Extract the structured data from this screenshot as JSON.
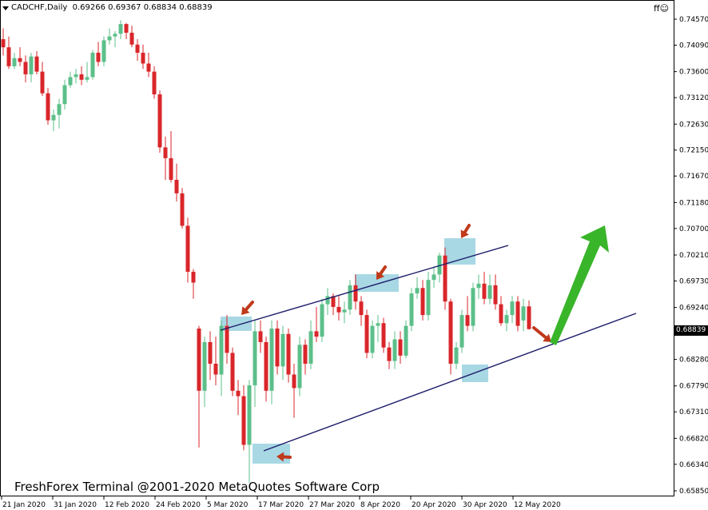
{
  "header": {
    "symbol": "CADCHF,Daily",
    "ohlc": "0.69266 0.69367 0.68834 0.68839",
    "ff_label": "ff☺"
  },
  "watermark": "FreshForex Terminal @2001-2020 MetaQuotes Software Corp",
  "current_price": "0.68839",
  "colors": {
    "bull": "#5cbf8a",
    "bear": "#d9262a",
    "channel": "#1c1c6a",
    "highlight": "#a8d8e4",
    "arrow_red": "#c0391b",
    "arrow_green": "#39b52a"
  },
  "chart_data": {
    "type": "candlestick",
    "title": "",
    "xlabel": "",
    "ylabel": "",
    "ylim": [
      0.6558,
      0.7478
    ],
    "y_ticks": [
      "0.74570",
      "0.74090",
      "0.73600",
      "0.73120",
      "0.72630",
      "0.72150",
      "0.71670",
      "0.71180",
      "0.70700",
      "0.70210",
      "0.69730",
      "0.69240",
      "0.68760",
      "0.68280",
      "0.67790",
      "0.67310",
      "0.66820",
      "0.66340",
      "0.65850"
    ],
    "x_labels": [
      "21 Jan 2020",
      "31 Jan 2020",
      "12 Feb 2020",
      "24 Feb 2020",
      "5 Mar 2020",
      "17 Mar 2020",
      "27 Mar 2020",
      "8 Apr 2020",
      "20 Apr 2020",
      "30 Apr 2020",
      "12 May 2020"
    ],
    "candles": [
      [
        0.742,
        0.744,
        0.739,
        0.7405
      ],
      [
        0.7405,
        0.7425,
        0.7365,
        0.737
      ],
      [
        0.737,
        0.7395,
        0.7365,
        0.7385
      ],
      [
        0.7385,
        0.7405,
        0.737,
        0.7378
      ],
      [
        0.7378,
        0.739,
        0.734,
        0.7355
      ],
      [
        0.7355,
        0.7395,
        0.734,
        0.7388
      ],
      [
        0.7388,
        0.7398,
        0.7355,
        0.736
      ],
      [
        0.736,
        0.7378,
        0.7315,
        0.732
      ],
      [
        0.732,
        0.733,
        0.7262,
        0.727
      ],
      [
        0.727,
        0.729,
        0.725,
        0.728
      ],
      [
        0.728,
        0.731,
        0.7255,
        0.73
      ],
      [
        0.73,
        0.7345,
        0.729,
        0.7335
      ],
      [
        0.7335,
        0.736,
        0.733,
        0.735
      ],
      [
        0.735,
        0.7365,
        0.7338,
        0.7355
      ],
      [
        0.7355,
        0.737,
        0.7335,
        0.7345
      ],
      [
        0.7345,
        0.7378,
        0.734,
        0.735
      ],
      [
        0.735,
        0.74,
        0.7345,
        0.7395
      ],
      [
        0.7395,
        0.7415,
        0.737,
        0.7378
      ],
      [
        0.7378,
        0.7425,
        0.737,
        0.7418
      ],
      [
        0.7418,
        0.744,
        0.741,
        0.7425
      ],
      [
        0.7425,
        0.7435,
        0.7405,
        0.743
      ],
      [
        0.743,
        0.7455,
        0.742,
        0.7448
      ],
      [
        0.7448,
        0.745,
        0.742,
        0.7432
      ],
      [
        0.7432,
        0.7445,
        0.7405,
        0.741
      ],
      [
        0.741,
        0.742,
        0.738,
        0.7395
      ],
      [
        0.7395,
        0.741,
        0.7365,
        0.7375
      ],
      [
        0.7375,
        0.7395,
        0.735,
        0.736
      ],
      [
        0.736,
        0.737,
        0.731,
        0.7318
      ],
      [
        0.7318,
        0.7325,
        0.721,
        0.722
      ],
      [
        0.722,
        0.724,
        0.716,
        0.72
      ],
      [
        0.72,
        0.725,
        0.7155,
        0.716
      ],
      [
        0.716,
        0.719,
        0.712,
        0.7135
      ],
      [
        0.7135,
        0.7145,
        0.707,
        0.7075
      ],
      [
        0.7075,
        0.709,
        0.697,
        0.699
      ],
      [
        0.699,
        0.6995,
        0.694,
        0.697
      ],
      [
        0.6885,
        0.689,
        0.6665,
        0.677
      ],
      [
        0.677,
        0.687,
        0.674,
        0.686
      ],
      [
        0.686,
        0.688,
        0.679,
        0.682
      ],
      [
        0.682,
        0.687,
        0.678,
        0.68
      ],
      [
        0.68,
        0.69,
        0.676,
        0.689
      ],
      [
        0.689,
        0.691,
        0.682,
        0.684
      ],
      [
        0.684,
        0.685,
        0.676,
        0.677
      ],
      [
        0.677,
        0.679,
        0.6725,
        0.676
      ],
      [
        0.676,
        0.678,
        0.666,
        0.667
      ],
      [
        0.667,
        0.679,
        0.66,
        0.678
      ],
      [
        0.678,
        0.69,
        0.674,
        0.688
      ],
      [
        0.688,
        0.69,
        0.684,
        0.686
      ],
      [
        0.686,
        0.687,
        0.675,
        0.677
      ],
      [
        0.677,
        0.69,
        0.6745,
        0.6885
      ],
      [
        0.6885,
        0.69,
        0.68,
        0.6815
      ],
      [
        0.6815,
        0.689,
        0.679,
        0.6875
      ],
      [
        0.6875,
        0.6885,
        0.6785,
        0.68
      ],
      [
        0.68,
        0.682,
        0.672,
        0.6775
      ],
      [
        0.6775,
        0.687,
        0.676,
        0.6855
      ],
      [
        0.6855,
        0.6865,
        0.68,
        0.682
      ],
      [
        0.682,
        0.69,
        0.681,
        0.688
      ],
      [
        0.688,
        0.6925,
        0.686,
        0.687
      ],
      [
        0.687,
        0.694,
        0.686,
        0.693
      ],
      [
        0.693,
        0.696,
        0.691,
        0.6945
      ],
      [
        0.6945,
        0.695,
        0.691,
        0.6925
      ],
      [
        0.6925,
        0.6945,
        0.69,
        0.6915
      ],
      [
        0.6915,
        0.6935,
        0.6895,
        0.692
      ],
      [
        0.692,
        0.6975,
        0.691,
        0.6965
      ],
      [
        0.6965,
        0.6985,
        0.692,
        0.6935
      ],
      [
        0.6935,
        0.6945,
        0.689,
        0.691
      ],
      [
        0.691,
        0.692,
        0.683,
        0.684
      ],
      [
        0.684,
        0.69,
        0.683,
        0.689
      ],
      [
        0.689,
        0.691,
        0.686,
        0.6895
      ],
      [
        0.6895,
        0.6905,
        0.684,
        0.685
      ],
      [
        0.685,
        0.686,
        0.681,
        0.6825
      ],
      [
        0.6825,
        0.688,
        0.681,
        0.6865
      ],
      [
        0.6865,
        0.688,
        0.682,
        0.6835
      ],
      [
        0.6835,
        0.69,
        0.683,
        0.689
      ],
      [
        0.689,
        0.696,
        0.688,
        0.695
      ],
      [
        0.695,
        0.698,
        0.694,
        0.696
      ],
      [
        0.696,
        0.6975,
        0.69,
        0.691
      ],
      [
        0.691,
        0.699,
        0.69,
        0.6975
      ],
      [
        0.6975,
        0.7,
        0.696,
        0.6985
      ],
      [
        0.6985,
        0.7025,
        0.697,
        0.702
      ],
      [
        0.702,
        0.7035,
        0.692,
        0.6935
      ],
      [
        0.6935,
        0.694,
        0.68,
        0.682
      ],
      [
        0.682,
        0.686,
        0.681,
        0.685
      ],
      [
        0.685,
        0.692,
        0.684,
        0.691
      ],
      [
        0.691,
        0.6945,
        0.688,
        0.689
      ],
      [
        0.689,
        0.697,
        0.688,
        0.696
      ],
      [
        0.696,
        0.6985,
        0.694,
        0.6968
      ],
      [
        0.6968,
        0.699,
        0.693,
        0.694
      ],
      [
        0.694,
        0.6985,
        0.693,
        0.6965
      ],
      [
        0.6965,
        0.6985,
        0.692,
        0.693
      ],
      [
        0.693,
        0.6945,
        0.689,
        0.6895
      ],
      [
        0.6895,
        0.692,
        0.688,
        0.691
      ],
      [
        0.691,
        0.6945,
        0.6895,
        0.6935
      ],
      [
        0.6935,
        0.6945,
        0.688,
        0.689
      ],
      [
        0.69,
        0.694,
        0.688,
        0.6926
      ],
      [
        0.6926,
        0.6937,
        0.6883,
        0.6884
      ]
    ]
  }
}
